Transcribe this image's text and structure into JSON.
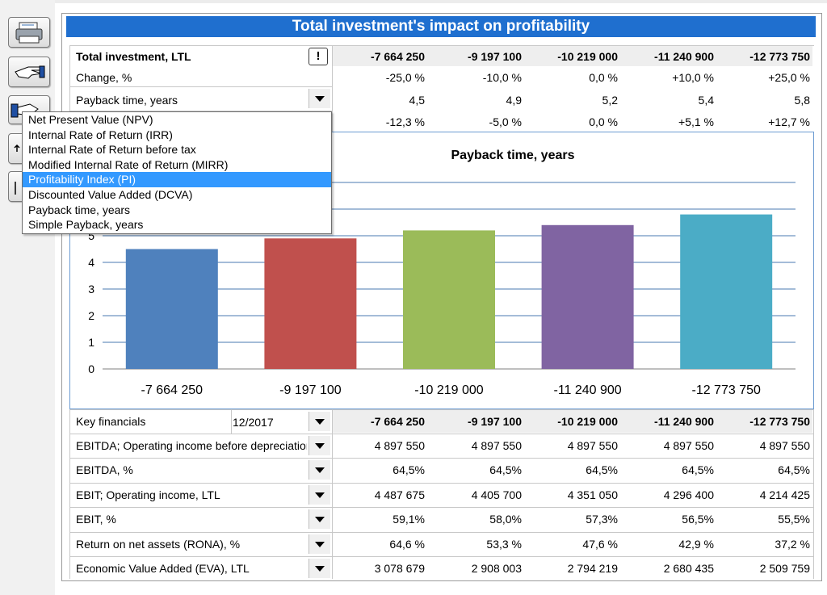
{
  "title": "Total investment's impact on profitability",
  "top_table": {
    "rows": [
      {
        "label": "Total investment, LTL",
        "values": [
          "-7 664 250",
          "-9 197 100",
          "-10 219 000",
          "-11 240 900",
          "-12 773 750"
        ]
      },
      {
        "label": "Change, %",
        "values": [
          "-25,0 %",
          "-10,0 %",
          "0,0 %",
          "+10,0 %",
          "+25,0 %"
        ]
      },
      {
        "label": "Payback time, years",
        "values": [
          "4,5",
          "4,9",
          "5,2",
          "5,4",
          "5,8"
        ]
      },
      {
        "label": "",
        "values": [
          "-12,3 %",
          "-5,0 %",
          "0,0 %",
          "+5,1 %",
          "+12,7 %"
        ]
      }
    ],
    "info_button": "!"
  },
  "dropdown": {
    "options": [
      "Net Present Value (NPV)",
      "Internal Rate of Return (IRR)",
      "Internal Rate of Return before tax",
      "Modified Internal Rate of Return (MIRR)",
      "Profitability Index (PI)",
      "Discounted Value Added (DCVA)",
      "Payback time, years",
      "Simple Payback, years"
    ],
    "selected_index": 4
  },
  "chart_data": {
    "type": "bar",
    "title": "Payback time, years",
    "categories": [
      "-7 664 250",
      "-9 197 100",
      "-10 219 000",
      "-11 240 900",
      "-12 773 750"
    ],
    "values": [
      4.5,
      4.9,
      5.2,
      5.4,
      5.8
    ],
    "colors": [
      "#4f81bd",
      "#c0504d",
      "#9bbb59",
      "#8064a2",
      "#4bacc6"
    ],
    "y_ticks_visible": [
      "5",
      "4",
      "3",
      "2",
      "1",
      "0"
    ],
    "ylim": [
      0,
      7
    ],
    "grid": true
  },
  "key_financials": {
    "label": "Key financials",
    "period": "12/2017",
    "headers": [
      "-7 664 250",
      "-9 197 100",
      "-10 219 000",
      "-11 240 900",
      "-12 773 750"
    ],
    "rows": [
      {
        "label": "EBITDA; Operating income before depreciation",
        "values": [
          "4 897 550",
          "4 897 550",
          "4 897 550",
          "4 897 550",
          "4 897 550"
        ]
      },
      {
        "label": "EBITDA, %",
        "values": [
          "64,5%",
          "64,5%",
          "64,5%",
          "64,5%",
          "64,5%"
        ]
      },
      {
        "label": "EBIT; Operating income, LTL",
        "values": [
          "4 487 675",
          "4 405 700",
          "4 351 050",
          "4 296 400",
          "4 214 425"
        ]
      },
      {
        "label": "EBIT, %",
        "values": [
          "59,1%",
          "58,0%",
          "57,3%",
          "56,5%",
          "55,5%"
        ]
      },
      {
        "label": "Return on net assets (RONA), %",
        "values": [
          "64,6 %",
          "53,3 %",
          "47,6 %",
          "42,9 %",
          "37,2 %"
        ]
      },
      {
        "label": "Economic Value Added (EVA), LTL",
        "values": [
          "3 078 679",
          "2 908 003",
          "2 794 219",
          "2 680 435",
          "2 509 759"
        ]
      }
    ]
  },
  "toolbar": {
    "icons": [
      "printer-icon",
      "pointing-hand-icon",
      "handshake-icon",
      "arrow-icon",
      "document-icon"
    ]
  }
}
